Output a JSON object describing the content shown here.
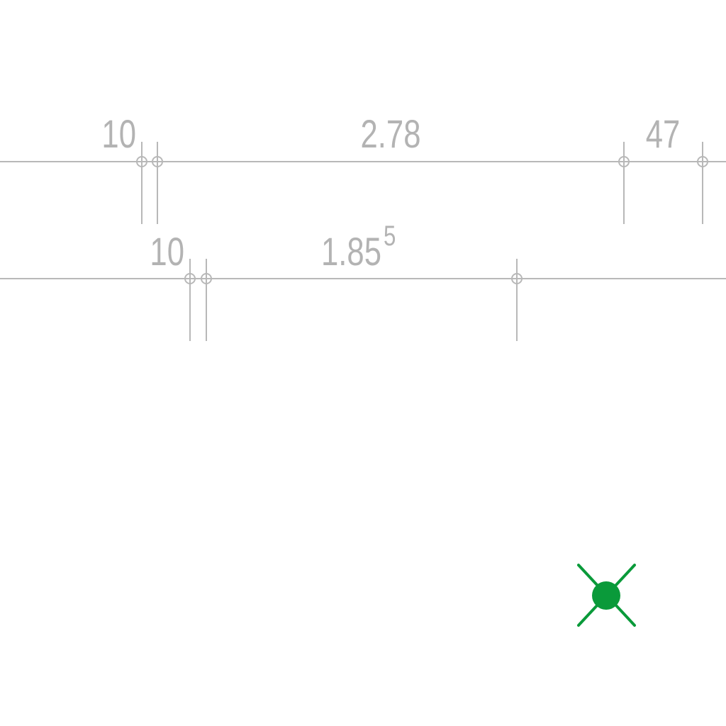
{
  "dimensions": {
    "upper_row": {
      "labels": [
        "10",
        "2.78",
        "47"
      ]
    },
    "lower_row": {
      "labels": [
        "10",
        "1.85"
      ],
      "superscript": "5"
    }
  },
  "marker": {
    "icon": "green-x-point-marker-icon",
    "color": "#0a9a3a"
  },
  "colors": {
    "dimension_line": "#b8b8b8",
    "dimension_text": "#b3b3b3"
  }
}
